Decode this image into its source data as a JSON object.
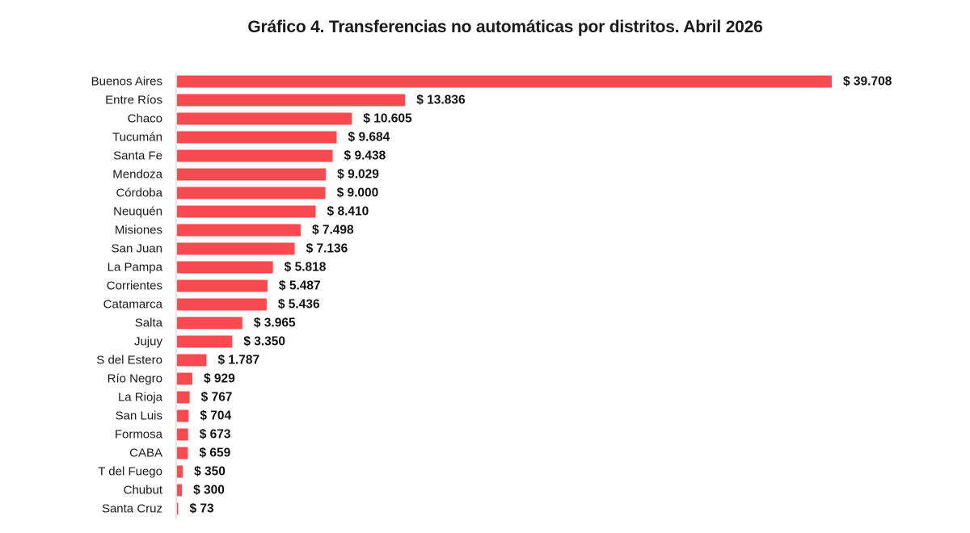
{
  "chart_data": {
    "type": "bar",
    "orientation": "horizontal",
    "title": "Gráfico 4. Transferencias no automáticas por distritos. Abril 2026",
    "xlabel": "",
    "ylabel": "",
    "value_prefix": "$ ",
    "grid": false,
    "legend": "none",
    "bar_color": "#f94a4f",
    "axis_color": "#c8c8c8",
    "categories": [
      "Buenos Aires",
      "Entre Ríos",
      "Chaco",
      "Tucumán",
      "Santa Fe",
      "Mendoza",
      "Córdoba",
      "Neuquén",
      "Misiones",
      "San Juan",
      "La Pampa",
      "Corrientes",
      "Catamarca",
      "Salta",
      "Jujuy",
      "S del Estero",
      "Río Negro",
      "La Rioja",
      "San Luis",
      "Formosa",
      "CABA",
      "T del Fuego",
      "Chubut",
      "Santa Cruz"
    ],
    "values": [
      39708,
      13836,
      10605,
      9684,
      9438,
      9029,
      9000,
      8410,
      7498,
      7136,
      5818,
      5487,
      5436,
      3965,
      3350,
      1787,
      929,
      767,
      704,
      673,
      659,
      350,
      300,
      73
    ],
    "value_labels": [
      "$ 39.708",
      "$ 13.836",
      "$ 10.605",
      "$ 9.684",
      "$ 9.438",
      "$ 9.029",
      "$ 9.000",
      "$ 8.410",
      "$ 7.498",
      "$ 7.136",
      "$ 5.818",
      "$ 5.487",
      "$ 5.436",
      "$ 3.965",
      "$ 3.350",
      "$ 1.787",
      "$ 929",
      "$ 767",
      "$ 704",
      "$ 673",
      "$ 659",
      "$ 350",
      "$ 300",
      "$ 73"
    ]
  }
}
